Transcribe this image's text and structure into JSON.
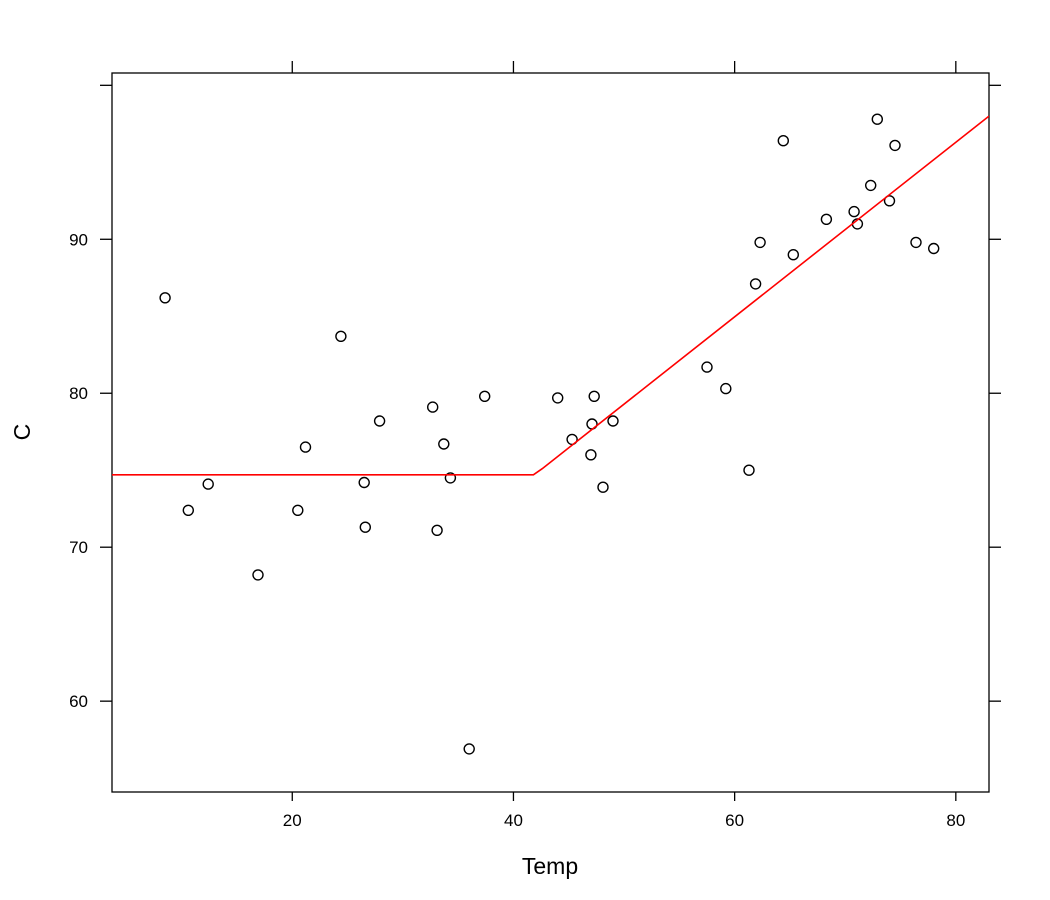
{
  "chart_data": {
    "type": "scatter",
    "xlabel": "Temp",
    "ylabel": "C",
    "xlim": [
      3.7,
      83
    ],
    "ylim": [
      54.1,
      100.8
    ],
    "x_ticks": [
      20,
      40,
      60,
      80
    ],
    "y_ticks": [
      60,
      70,
      80,
      90
    ],
    "x_tick_labels": [
      "20",
      "40",
      "60",
      "80"
    ],
    "y_tick_labels": [
      "60",
      "70",
      "80",
      "90"
    ],
    "grid": false,
    "point_color": "#000000",
    "line_color": "#ff0000",
    "series": [
      {
        "type": "scatter",
        "points": [
          [
            8.5,
            86.2
          ],
          [
            10.6,
            72.4
          ],
          [
            12.4,
            74.1
          ],
          [
            16.9,
            68.2
          ],
          [
            20.5,
            72.4
          ],
          [
            21.2,
            76.5
          ],
          [
            24.4,
            83.7
          ],
          [
            26.5,
            74.2
          ],
          [
            26.6,
            71.3
          ],
          [
            27.9,
            78.2
          ],
          [
            32.7,
            79.1
          ],
          [
            33.1,
            71.1
          ],
          [
            33.7,
            76.7
          ],
          [
            34.3,
            74.5
          ],
          [
            36.0,
            56.9
          ],
          [
            37.4,
            79.8
          ],
          [
            44.0,
            79.7
          ],
          [
            45.3,
            77.0
          ],
          [
            47.0,
            76.0
          ],
          [
            47.1,
            78.0
          ],
          [
            47.3,
            79.8
          ],
          [
            48.1,
            73.9
          ],
          [
            49.0,
            78.2
          ],
          [
            57.5,
            81.7
          ],
          [
            59.2,
            80.3
          ],
          [
            61.3,
            75.0
          ],
          [
            61.9,
            87.1
          ],
          [
            62.3,
            89.8
          ],
          [
            64.4,
            96.4
          ],
          [
            65.3,
            89.0
          ],
          [
            68.3,
            91.3
          ],
          [
            70.8,
            91.8
          ],
          [
            71.1,
            91.0
          ],
          [
            72.3,
            93.5
          ],
          [
            72.9,
            97.8
          ],
          [
            74.0,
            92.5
          ],
          [
            74.5,
            96.1
          ],
          [
            76.4,
            89.8
          ],
          [
            78.0,
            89.4
          ]
        ]
      },
      {
        "type": "line",
        "points": [
          [
            3.7,
            74.7
          ],
          [
            41.8,
            74.7
          ],
          [
            42.6,
            75.1
          ],
          [
            83,
            98.0
          ]
        ]
      }
    ]
  }
}
